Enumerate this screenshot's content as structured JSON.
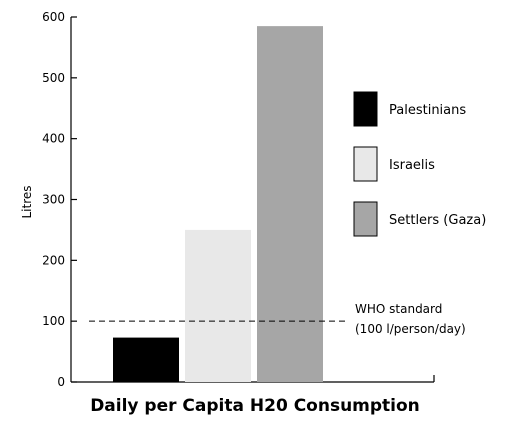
{
  "chart_data": {
    "type": "bar",
    "title": "Daily per Capita H20 Consumption",
    "xlabel": "",
    "ylabel": "Litres",
    "ylim": [
      0,
      600
    ],
    "yticks": [
      0,
      100,
      200,
      300,
      400,
      500,
      600
    ],
    "grid": false,
    "legend_position": "right",
    "series": [
      {
        "name": "Palestinians",
        "value": 73,
        "color": "#000000"
      },
      {
        "name": "Israelis",
        "value": 250,
        "color": "#e8e8e8"
      },
      {
        "name": "Settlers (Gaza)",
        "value": 585,
        "color": "#a6a6a6"
      }
    ],
    "reference_line": {
      "value": 100,
      "style": "dashed",
      "label_line1": "WHO standard",
      "label_line2": "(100 l/person/day)"
    }
  }
}
